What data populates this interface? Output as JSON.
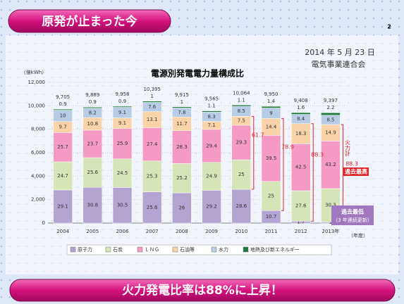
{
  "header": {
    "title": "原発が止まった今",
    "page": "2",
    "date": "2014 年 5 月 23 日",
    "org": "電気事業連合会"
  },
  "footer": {
    "text": "火力発電比率は88%に上昇！"
  },
  "chart_data": {
    "type": "stacked-bar",
    "title": "電源別発電電力量構成比",
    "y_label": "（億kWh）",
    "x_label": "（年度）",
    "categories": [
      "2004",
      "2005",
      "2006",
      "2007",
      "2008",
      "2009",
      "2010",
      "2011",
      "2012",
      "2013年"
    ],
    "ylim": [
      0,
      12000
    ],
    "yticks": [
      0,
      {
        "value": 2000,
        "label": "2,000"
      },
      {
        "value": 4000,
        "label": "4,000"
      },
      {
        "value": 6000,
        "label": "6,000"
      },
      {
        "value": 8000,
        "label": "8,000"
      },
      {
        "value": 10000,
        "label": "10,000"
      },
      {
        "value": 12000,
        "label": "12,000"
      }
    ],
    "grid": true,
    "totals": {
      "values": [
        9705,
        9889,
        9958,
        10395,
        9915,
        9565,
        10064,
        9950,
        9408,
        9397
      ],
      "value_labels": [
        "9,705",
        "9,889",
        "9,958",
        "10,395",
        "9,915",
        "9,565",
        "10,064",
        "9,950",
        "9,408",
        "9,397"
      ]
    },
    "series": [
      {
        "name": "原子力",
        "color": "#b4a4d2",
        "values": [
          29.1,
          30.8,
          30.5,
          25.6,
          26.0,
          29.2,
          28.6,
          10.7,
          1.7,
          1.0
        ]
      },
      {
        "name": "石炭",
        "color": "#d6e5b8",
        "values": [
          24.7,
          25.6,
          24.5,
          25.3,
          25.2,
          24.9,
          25.0,
          25.0,
          27.6,
          30.3
        ]
      },
      {
        "name": "ＬＮＧ",
        "color": "#f49ac4",
        "values": [
          25.7,
          23.7,
          25.9,
          27.4,
          28.3,
          29.4,
          29.3,
          39.5,
          42.5,
          43.2
        ]
      },
      {
        "name": "石油等",
        "color": "#fbd3a8",
        "values": [
          9.7,
          10.8,
          9.1,
          13.1,
          11.7,
          7.1,
          7.5,
          14.4,
          18.3,
          14.9
        ]
      },
      {
        "name": "水力",
        "color": "#b8cce6",
        "values": [
          10.0,
          8.2,
          9.1,
          7.6,
          7.8,
          8.3,
          8.5,
          9.0,
          8.4,
          8.5
        ]
      },
      {
        "name": "地熱及び新エネルギー",
        "color": "#1e7a3c",
        "values": [
          0.9,
          0.9,
          0.9,
          1.0,
          1.0,
          1.1,
          1.1,
          1.4,
          1.6,
          2.2
        ]
      }
    ],
    "annotations": [
      "61.7",
      "78.9",
      "88.3",
      "火力計",
      "88.3",
      "過去最高",
      "過去最低",
      "（3 年連続更新）"
    ]
  }
}
